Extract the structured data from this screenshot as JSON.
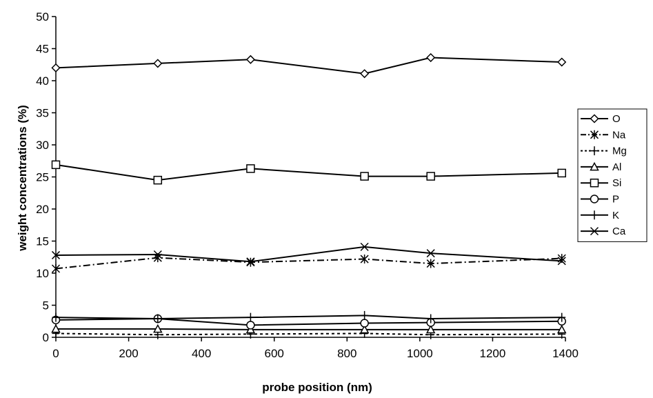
{
  "chart_data": {
    "type": "line",
    "title": "",
    "xlabel": "probe position (nm)",
    "ylabel": "weight concentrations (%)",
    "xlim": [
      0,
      1400
    ],
    "ylim": [
      0,
      50
    ],
    "x_ticks": [
      0,
      200,
      400,
      600,
      800,
      1000,
      1200,
      1400
    ],
    "y_ticks": [
      0,
      5,
      10,
      15,
      20,
      25,
      30,
      35,
      40,
      45,
      50
    ],
    "x_tick_labels": [
      "0",
      "200",
      "400",
      "600",
      "800",
      "1000",
      "1200",
      "1400"
    ],
    "y_tick_labels": [
      "0",
      "5",
      "10",
      "15",
      "20",
      "25",
      "30",
      "35",
      "40",
      "45",
      "50"
    ],
    "legend_position": "right",
    "grid": false,
    "x": [
      0,
      280,
      535,
      848,
      1030,
      1390
    ],
    "series": [
      {
        "name": "O",
        "marker": "diamond",
        "dash": "solid",
        "values": [
          42.0,
          42.7,
          43.3,
          41.1,
          43.6,
          42.9
        ]
      },
      {
        "name": "Na",
        "marker": "asterisk",
        "dash": "dashdot",
        "values": [
          10.7,
          12.4,
          11.7,
          12.2,
          11.5,
          12.3
        ]
      },
      {
        "name": "Mg",
        "marker": "plus",
        "dash": "dotted",
        "values": [
          0.6,
          0.4,
          0.5,
          0.6,
          0.4,
          0.5
        ]
      },
      {
        "name": "Al",
        "marker": "triangle",
        "dash": "solid",
        "values": [
          1.3,
          1.3,
          1.2,
          1.2,
          1.2,
          1.2
        ]
      },
      {
        "name": "Si",
        "marker": "square",
        "dash": "solid",
        "values": [
          26.9,
          24.5,
          26.3,
          25.1,
          25.1,
          25.6
        ]
      },
      {
        "name": "P",
        "marker": "circle",
        "dash": "solid",
        "values": [
          2.7,
          2.9,
          1.9,
          2.2,
          2.3,
          2.5
        ]
      },
      {
        "name": "K",
        "marker": "plus",
        "dash": "solid",
        "values": [
          3.1,
          2.9,
          3.1,
          3.4,
          2.9,
          3.1
        ]
      },
      {
        "name": "Ca",
        "marker": "x",
        "dash": "solid",
        "values": [
          12.8,
          12.9,
          11.8,
          14.1,
          13.1,
          11.9
        ]
      }
    ]
  }
}
